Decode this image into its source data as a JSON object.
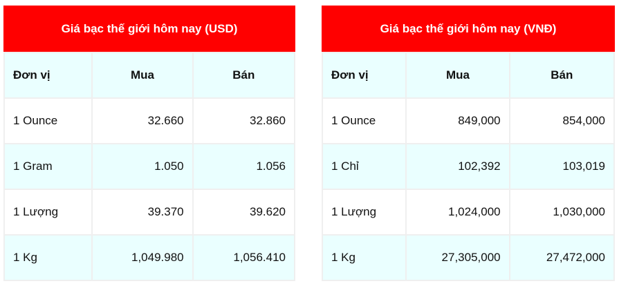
{
  "tables": [
    {
      "title": "Giá bạc thế giới hôm nay (USD)",
      "headers": [
        "Đơn vị",
        "Mua",
        "Bán"
      ],
      "rows": [
        [
          "1 Ounce",
          "32.660",
          "32.860"
        ],
        [
          "1 Gram",
          "1.050",
          "1.056"
        ],
        [
          "1 Lượng",
          "39.370",
          "39.620"
        ],
        [
          "1 Kg",
          "1,049.980",
          "1,056.410"
        ]
      ]
    },
    {
      "title": "Giá bạc thế giới hôm nay (VNĐ)",
      "headers": [
        "Đơn vị",
        "Mua",
        "Bán"
      ],
      "rows": [
        [
          "1 Ounce",
          "849,000",
          "854,000"
        ],
        [
          "1 Chỉ",
          "102,392",
          "103,019"
        ],
        [
          "1 Lượng",
          "1,024,000",
          "1,030,000"
        ],
        [
          "1 Kg",
          "27,305,000",
          "27,472,000"
        ]
      ]
    }
  ],
  "colors": {
    "header_bg": "#ff0000",
    "alt_row_bg": "#eaffff",
    "border": "#efefef"
  }
}
